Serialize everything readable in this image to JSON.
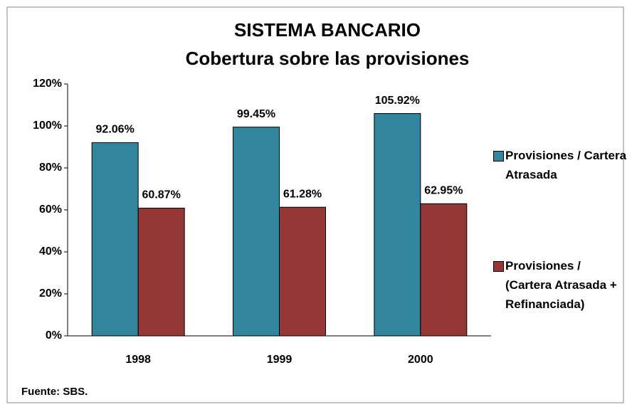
{
  "chart_data": {
    "type": "bar",
    "title": "SISTEMA BANCARIO",
    "subtitle": "Cobertura sobre las provisiones",
    "categories": [
      "1998",
      "1999",
      "2000"
    ],
    "series": [
      {
        "name": "Provisiones / Cartera Atrasada",
        "color": "#31859c",
        "values": [
          92.06,
          99.45,
          105.92
        ],
        "value_labels": [
          "92.06%",
          "99.45%",
          "105.92%"
        ]
      },
      {
        "name": "Provisiones / (Cartera Atrasada + Refinanciada)",
        "color": "#953735",
        "values": [
          60.87,
          61.28,
          62.95
        ],
        "value_labels": [
          "60.87%",
          "61.28%",
          "62.95%"
        ]
      }
    ],
    "ylim": [
      0,
      120
    ],
    "yticks": [
      {
        "value": 0,
        "label": "0%"
      },
      {
        "value": 20,
        "label": "20%"
      },
      {
        "value": 40,
        "label": "40%"
      },
      {
        "value": 60,
        "label": "60%"
      },
      {
        "value": 80,
        "label": "80%"
      },
      {
        "value": 100,
        "label": "100%"
      },
      {
        "value": 120,
        "label": "120%"
      }
    ],
    "legend": "right",
    "source": "Fuente: SBS."
  }
}
